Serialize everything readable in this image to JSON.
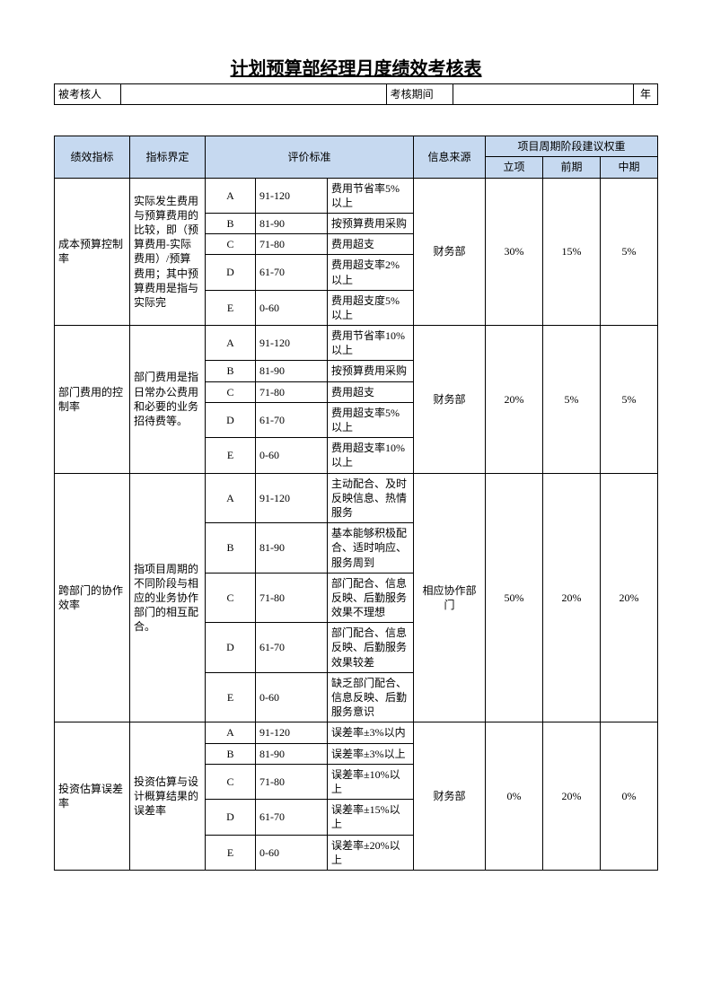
{
  "title": "计划预算部经理月度绩效考核表",
  "meta": {
    "assessee_label": "被考核人",
    "period_label": "考核期间",
    "period_suffix": "年"
  },
  "colors": {
    "header_bg": "#c6d9f0",
    "border": "#000000",
    "background": "#ffffff"
  },
  "col_widths_pct": [
    10.5,
    10.5,
    7,
    10,
    12,
    10,
    8,
    8,
    8
  ],
  "headers": {
    "metric": "绩效指标",
    "definition": "指标界定",
    "criteria": "评价标准",
    "source": "信息来源",
    "weight_group": "项目周期阶段建议权重",
    "weight_cols": [
      "立项",
      "前期",
      "中期"
    ]
  },
  "groups": [
    {
      "metric": "成本预算控制率",
      "definition": "实际发生费用与预算费用的比较，即（预算费用-实际费用）/预算费用；其中预算费用是指与实际完",
      "source": "财务部",
      "weights": [
        "30%",
        "15%",
        "5%"
      ],
      "rows": [
        {
          "grade": "A",
          "range": "91-120",
          "desc": "费用节省率5%以上"
        },
        {
          "grade": "B",
          "range": "81-90",
          "desc": "按预算费用采购"
        },
        {
          "grade": "C",
          "range": "71-80",
          "desc": "费用超支"
        },
        {
          "grade": "D",
          "range": "61-70",
          "desc": "费用超支率2%以上"
        },
        {
          "grade": "E",
          "range": "0-60",
          "desc": "费用超支度5%以上"
        }
      ]
    },
    {
      "metric": "部门费用的控制率",
      "definition": "部门费用是指日常办公费用和必要的业务招待费等。",
      "source": "财务部",
      "weights": [
        "20%",
        "5%",
        "5%"
      ],
      "rows": [
        {
          "grade": "A",
          "range": "91-120",
          "desc": "费用节省率10%以上"
        },
        {
          "grade": "B",
          "range": "81-90",
          "desc": "按预算费用采购"
        },
        {
          "grade": "C",
          "range": "71-80",
          "desc": "费用超支"
        },
        {
          "grade": "D",
          "range": "61-70",
          "desc": "费用超支率5%以上"
        },
        {
          "grade": "E",
          "range": "0-60",
          "desc": "费用超支率10%以上"
        }
      ]
    },
    {
      "metric": "跨部门的协作效率",
      "definition": "指项目周期的不同阶段与相应的业务协作部门的相互配合。",
      "source": "相应协作部门",
      "weights": [
        "50%",
        "20%",
        "20%"
      ],
      "rows": [
        {
          "grade": "A",
          "range": "91-120",
          "desc": "主动配合、及时反映信息、热情服务"
        },
        {
          "grade": "B",
          "range": "81-90",
          "desc": "基本能够积极配合、适时响应、服务周到"
        },
        {
          "grade": "C",
          "range": "71-80",
          "desc": "部门配合、信息反映、后勤服务效果不理想"
        },
        {
          "grade": "D",
          "range": "61-70",
          "desc": "部门配合、信息反映、后勤服务效果较差"
        },
        {
          "grade": "E",
          "range": "0-60",
          "desc": "缺乏部门配合、信息反映、后勤服务意识"
        }
      ]
    },
    {
      "metric": "投资估算误差率",
      "definition": "投资估算与设计概算结果的误差率",
      "source": "财务部",
      "weights": [
        "0%",
        "20%",
        "0%"
      ],
      "rows": [
        {
          "grade": "A",
          "range": "91-120",
          "desc": "误差率±3%以内"
        },
        {
          "grade": "B",
          "range": "81-90",
          "desc": "误差率±3%以上"
        },
        {
          "grade": "C",
          "range": "71-80",
          "desc": "误差率±10%以上"
        },
        {
          "grade": "D",
          "range": "61-70",
          "desc": "误差率±15%以上"
        },
        {
          "grade": "E",
          "range": "0-60",
          "desc": "误差率±20%以上"
        }
      ]
    }
  ]
}
